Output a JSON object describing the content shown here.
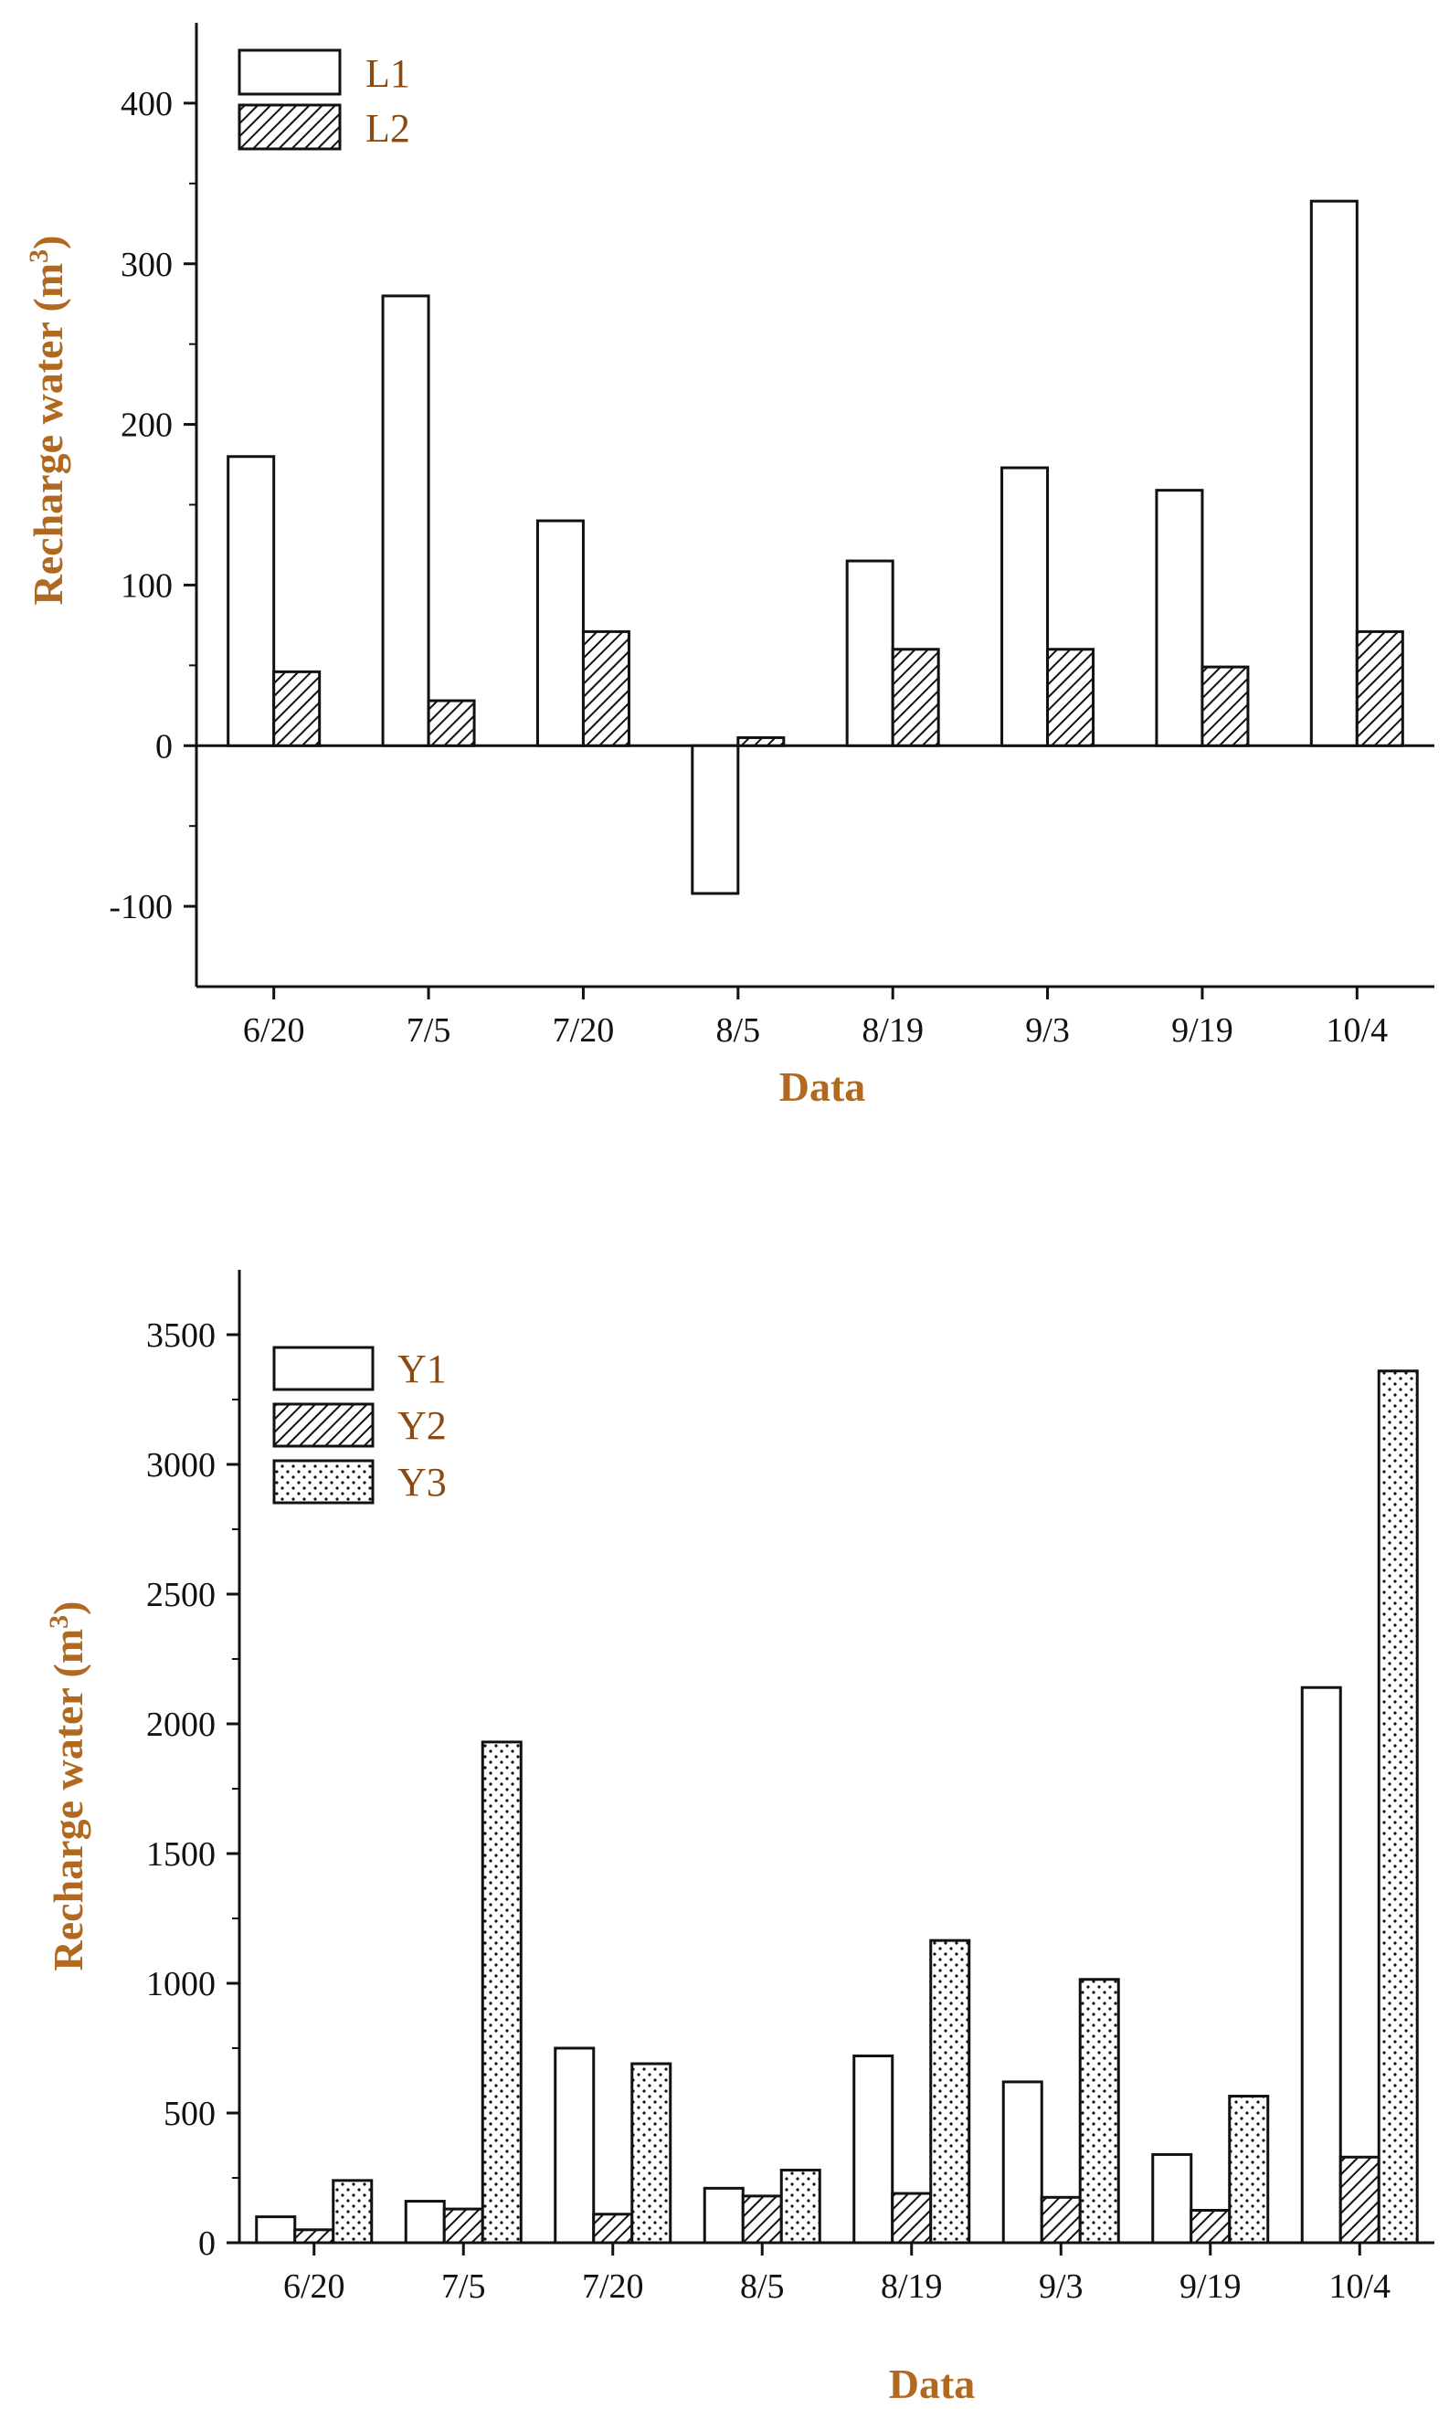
{
  "chart_data": [
    {
      "type": "bar",
      "title": "",
      "xlabel": "Data",
      "ylabel": "Recharge water (m",
      "ylabel_sup": "3",
      "ylabel_close": ")",
      "categories": [
        "6/20",
        "7/5",
        "7/20",
        "8/5",
        "8/19",
        "9/3",
        "9/19",
        "10/4"
      ],
      "yticks": [
        "-100",
        "0",
        "100",
        "200",
        "300",
        "400"
      ],
      "ylim": [
        -150,
        450
      ],
      "series": [
        {
          "name": "L1",
          "pattern": "open",
          "values": [
            180,
            280,
            140,
            -92,
            115,
            173,
            159,
            339
          ]
        },
        {
          "name": "L2",
          "pattern": "hatch",
          "values": [
            46,
            28,
            71,
            5,
            60,
            60,
            49,
            71
          ]
        }
      ]
    },
    {
      "type": "bar",
      "title": "",
      "xlabel": "Data",
      "ylabel": "Recharge water (m",
      "ylabel_sup": "3",
      "ylabel_close": ")",
      "categories": [
        "6/20",
        "7/5",
        "7/20",
        "8/5",
        "8/19",
        "9/3",
        "9/19",
        "10/4"
      ],
      "yticks": [
        "0",
        "500",
        "1000",
        "1500",
        "2000",
        "2500",
        "3000",
        "3500"
      ],
      "ylim": [
        0,
        3750
      ],
      "series": [
        {
          "name": "Y1",
          "pattern": "open",
          "values": [
            100,
            160,
            750,
            210,
            720,
            620,
            340,
            2140
          ]
        },
        {
          "name": "Y2",
          "pattern": "hatch",
          "values": [
            50,
            130,
            110,
            180,
            190,
            175,
            125,
            330
          ]
        },
        {
          "name": "Y3",
          "pattern": "dots",
          "values": [
            240,
            1930,
            690,
            280,
            1165,
            1015,
            565,
            3360
          ]
        }
      ]
    }
  ]
}
